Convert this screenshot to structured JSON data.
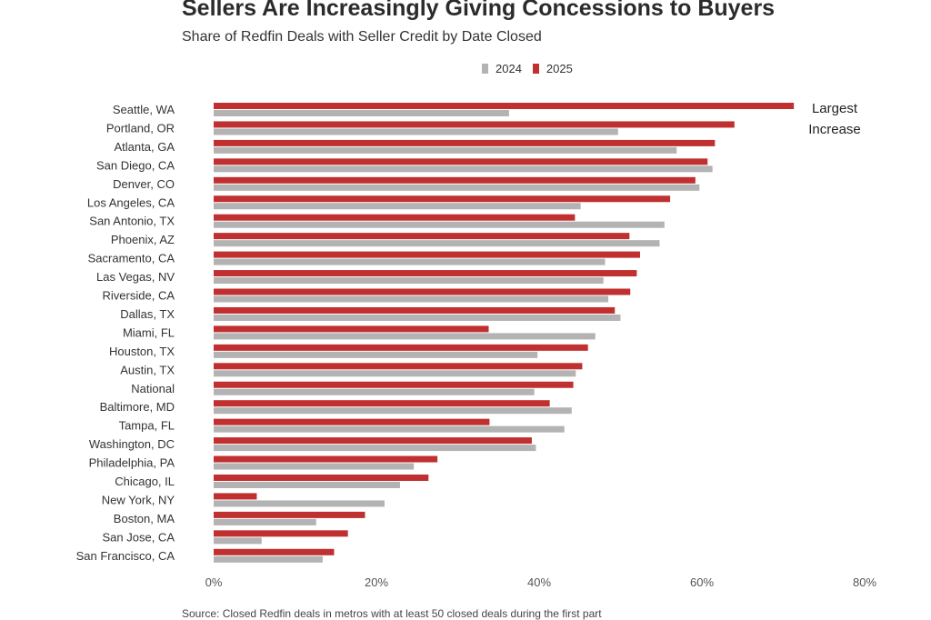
{
  "colors": {
    "y2024": "#b3b3b3",
    "y2025": "#c03030"
  },
  "annotation": "Largest Increase",
  "footnote": "Source: Closed Redfin deals in metros with at least 50 closed deals during the first part",
  "chart_data": {
    "type": "bar",
    "orientation": "horizontal",
    "title": "Sellers Are Increasingly Giving Concessions to Buyers",
    "subtitle": "Share of Redfin Deals with Seller Credit by Date Closed",
    "xlabel": "",
    "ylabel": "",
    "xlim": [
      0,
      80
    ],
    "xticks": [
      0,
      20,
      40,
      60,
      80
    ],
    "xtick_labels": [
      "0%",
      "20%",
      "40%",
      "60%",
      "80%"
    ],
    "legend_position": "top-center",
    "grid": false,
    "categories": [
      "Seattle, WA",
      "Portland, OR",
      "Atlanta, GA",
      "San Diego, CA",
      "Denver, CO",
      "Los Angeles, CA",
      "San Antonio, TX",
      "Phoenix, AZ",
      "Sacramento, CA",
      "Las Vegas, NV",
      "Riverside, CA",
      "Dallas, TX",
      "Miami, FL",
      "Houston, TX",
      "Austin, TX",
      "National",
      "Baltimore, MD",
      "Tampa, FL",
      "Washington, DC",
      "Philadelphia, PA",
      "Chicago, IL",
      "New York, NY",
      "Boston, MA",
      "San Jose, CA",
      "San Francisco, CA"
    ],
    "series": [
      {
        "name": "2024",
        "values": [
          36.3,
          49.7,
          56.9,
          61.3,
          59.7,
          45.1,
          55.4,
          54.8,
          48.1,
          47.9,
          48.5,
          50.0,
          46.9,
          39.8,
          44.5,
          39.4,
          44.0,
          43.1,
          39.6,
          24.6,
          22.9,
          21.0,
          12.6,
          5.9,
          13.4
        ]
      },
      {
        "name": "2025",
        "values": [
          71.3,
          64.0,
          61.6,
          60.7,
          59.2,
          56.1,
          44.4,
          51.1,
          52.4,
          52.0,
          51.2,
          49.3,
          33.8,
          46.0,
          45.3,
          44.2,
          41.3,
          33.9,
          39.1,
          27.5,
          26.4,
          5.3,
          18.6,
          16.5,
          14.8
        ]
      }
    ]
  }
}
